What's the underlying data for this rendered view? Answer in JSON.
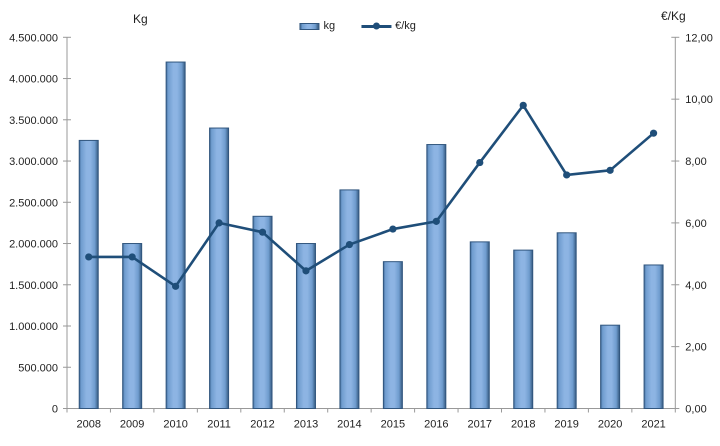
{
  "chart_data": {
    "type": "combo-bar-line",
    "title": "",
    "categories": [
      "2008",
      "2009",
      "2010",
      "2011",
      "2012",
      "2013",
      "2014",
      "2015",
      "2016",
      "2017",
      "2018",
      "2019",
      "2020",
      "2021"
    ],
    "series": [
      {
        "name": "kg",
        "type": "bar",
        "axis": "left",
        "values": [
          3250000,
          2000000,
          4200000,
          3400000,
          2330000,
          2000000,
          2650000,
          1780000,
          3200000,
          2020000,
          1920000,
          2130000,
          1010000,
          1740000
        ]
      },
      {
        "name": "€/kg",
        "type": "line",
        "axis": "right",
        "values": [
          4.9,
          4.9,
          3.95,
          6.0,
          5.7,
          4.45,
          5.3,
          5.8,
          6.05,
          7.95,
          9.8,
          7.55,
          7.7,
          8.9
        ]
      }
    ],
    "left_axis": {
      "title": "Kg",
      "min": 0,
      "max": 4500000,
      "tick_step": 500000,
      "tick_labels": [
        "4.500.000",
        "4.000.000",
        "3.500.000",
        "3.000.000",
        "2.500.000",
        "2.000.000",
        "1.500.000",
        "1.000.000",
        "500.000",
        "0"
      ]
    },
    "right_axis": {
      "title": "€/Kg",
      "min": 0,
      "max": 12,
      "tick_step": 2,
      "tick_labels": [
        "12,00",
        "10,00",
        "8,00",
        "6,00",
        "4,00",
        "2,00",
        "0,00"
      ]
    },
    "legend": [
      {
        "label": "kg",
        "swatch": "bar-swatch"
      },
      {
        "label": "€/kg",
        "swatch": "line-swatch"
      }
    ],
    "legend_position": "top-center",
    "grid": false,
    "colors": {
      "bar_fill_light": "#8db4e3",
      "bar_fill_mid": "#6f9cce",
      "bar_fill_dark": "#3d6795",
      "bar_border": "#31567e",
      "line": "#1f4e79",
      "axis": "#999999",
      "text": "#1f1f1f",
      "background": "#ffffff"
    }
  }
}
